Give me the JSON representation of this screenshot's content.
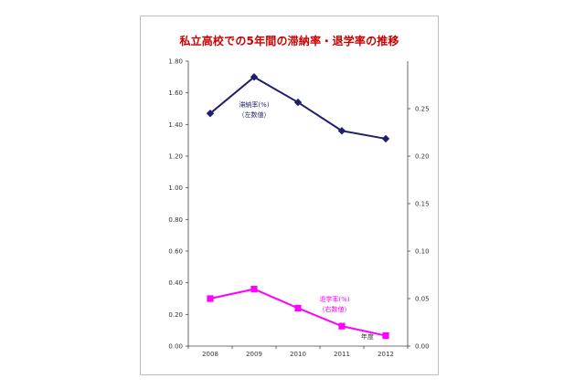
{
  "chart_data": {
    "type": "line",
    "title": "私立高校での5年間の滞納率・退学率の推移",
    "x": [
      "2008",
      "2009",
      "2010",
      "2011",
      "2012"
    ],
    "xlabel": "年度",
    "y_left": {
      "range": [
        0,
        1.8
      ],
      "ticks": [
        "0.00",
        "0.20",
        "0.40",
        "0.60",
        "0.80",
        "1.00",
        "1.20",
        "1.40",
        "1.60",
        "1.80"
      ]
    },
    "y_right": {
      "range": [
        0,
        0.3
      ],
      "ticks": [
        "0.00",
        "0.05",
        "0.10",
        "0.15",
        "0.20",
        "0.25"
      ]
    },
    "grid": false,
    "series": [
      {
        "name": "滞納率(%)",
        "sub": "（左数値）",
        "axis": "left",
        "color": "#1f1f6e",
        "marker": "diamond",
        "values": [
          1.47,
          1.7,
          1.54,
          1.36,
          1.31
        ]
      },
      {
        "name": "退学率(%)",
        "sub": "（右数値）",
        "axis": "right",
        "color": "#ff00ff",
        "marker": "square",
        "values": [
          0.05,
          0.06,
          0.04,
          0.021,
          0.011
        ]
      }
    ]
  }
}
